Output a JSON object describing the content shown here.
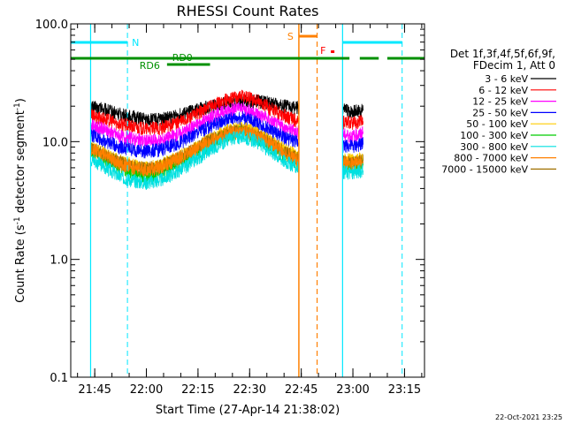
{
  "chart_data": {
    "type": "line",
    "title": "RHESSI Count Rates",
    "xlabel": "Start Time (27-Apr-14 21:38:02)",
    "ylabel_main": "Count Rate (s",
    "ylabel_sup": "-1",
    "ylabel_mid": " detector segment",
    "ylabel_sup2": "-1",
    "ylabel_end": ")",
    "y_scale": "log",
    "ylim": [
      0.1,
      100.0
    ],
    "y_ticks": [
      0.1,
      1.0,
      10.0,
      100.0
    ],
    "y_tick_labels": [
      "0.1",
      "1.0",
      "10.0",
      "100.0"
    ],
    "x_tick_labels": [
      "21:45",
      "22:00",
      "22:15",
      "22:30",
      "22:45",
      "23:00",
      "23:15"
    ],
    "x_tick_minutes": [
      405,
      420,
      435,
      450,
      465,
      480,
      495
    ],
    "xlim_minutes": [
      398.03,
      500.8
    ],
    "timestamp": "22-Oct-2021 23:25",
    "legend_header": [
      "Det 1f,3f,4f,5f,6f,9f,",
      "FDecim 1, Att 0"
    ],
    "data_gaps_minutes": [
      [
        398.03,
        403.8
      ],
      [
        464.3,
        477.0
      ],
      [
        483.5,
        500.8
      ]
    ],
    "series": [
      {
        "name": "3 - 6 keV",
        "color": "#000000",
        "x": [
          404,
          408,
          412,
          416,
          420,
          424,
          428,
          432,
          436,
          440,
          444,
          448,
          452,
          456,
          460,
          464,
          477,
          480,
          483
        ],
        "values": [
          19.8,
          18.8,
          17.2,
          16.2,
          15.4,
          15.6,
          16.3,
          17.6,
          19.1,
          20.3,
          21.6,
          22.4,
          22.1,
          21.3,
          20.1,
          19.2,
          18.6,
          18.0,
          18.6
        ]
      },
      {
        "name": "6 - 12 keV",
        "color": "#ff0000",
        "x": [
          404,
          408,
          412,
          416,
          420,
          424,
          428,
          432,
          436,
          440,
          444,
          448,
          452,
          456,
          460,
          464,
          477,
          480,
          483
        ],
        "values": [
          16.7,
          15.6,
          14.2,
          13.4,
          12.8,
          13.1,
          14.1,
          15.6,
          18.1,
          20.8,
          23.1,
          24.9,
          22.4,
          19.1,
          16.7,
          15.1,
          14.8,
          14.4,
          15.1
        ]
      },
      {
        "name": "12 - 25 keV",
        "color": "#ff00ff",
        "x": [
          404,
          408,
          412,
          416,
          420,
          424,
          428,
          432,
          436,
          440,
          444,
          448,
          452,
          456,
          460,
          464,
          477,
          480,
          483
        ],
        "values": [
          13.7,
          12.6,
          11.2,
          10.6,
          10.1,
          10.3,
          11.1,
          12.6,
          14.6,
          16.9,
          18.6,
          19.3,
          17.6,
          15.1,
          13.1,
          12.1,
          11.6,
          11.2,
          11.9
        ]
      },
      {
        "name": "25 - 50 keV",
        "color": "#0000ff",
        "x": [
          404,
          408,
          412,
          416,
          420,
          424,
          428,
          432,
          436,
          440,
          444,
          448,
          452,
          456,
          460,
          464,
          477,
          480,
          483
        ],
        "values": [
          11.4,
          10.2,
          9.1,
          8.6,
          8.3,
          8.6,
          9.4,
          10.6,
          12.4,
          14.1,
          15.6,
          16.1,
          14.6,
          12.6,
          10.9,
          9.9,
          9.4,
          9.1,
          9.6
        ]
      },
      {
        "name": "50 - 100 keV",
        "color": "#ffcc00",
        "x": [
          404,
          408,
          412,
          416,
          420,
          424,
          428,
          432,
          436,
          440,
          444,
          448,
          452,
          456,
          460,
          464,
          477,
          480,
          483
        ],
        "values": [
          9.1,
          7.9,
          6.9,
          6.3,
          6.0,
          6.3,
          7.1,
          8.1,
          9.6,
          11.1,
          12.6,
          13.1,
          11.9,
          10.1,
          8.6,
          7.6,
          7.2,
          6.9,
          7.3
        ]
      },
      {
        "name": "100 - 300 keV",
        "color": "#00cc00",
        "x": [
          404,
          408,
          412,
          416,
          420,
          424,
          428,
          432,
          436,
          440,
          444,
          448,
          452,
          456,
          460,
          464,
          477,
          480,
          483
        ],
        "values": [
          8.1,
          7.1,
          6.0,
          5.4,
          5.1,
          5.4,
          6.2,
          7.2,
          8.6,
          10.1,
          11.6,
          12.1,
          10.9,
          9.1,
          7.6,
          6.7,
          6.3,
          6.0,
          6.4
        ]
      },
      {
        "name": "300 - 800 keV",
        "color": "#00e0e0",
        "x": [
          404,
          408,
          412,
          416,
          420,
          424,
          428,
          432,
          436,
          440,
          444,
          448,
          452,
          456,
          460,
          464,
          477,
          480,
          483
        ],
        "values": [
          7.1,
          6.1,
          5.1,
          4.7,
          4.5,
          4.7,
          5.4,
          6.3,
          7.6,
          9.1,
          10.6,
          11.1,
          10.1,
          8.4,
          6.9,
          6.0,
          5.6,
          5.4,
          5.8
        ]
      },
      {
        "name": "800 - 7000 keV",
        "color": "#ff8000",
        "x": [
          404,
          408,
          412,
          416,
          420,
          424,
          428,
          432,
          436,
          440,
          444,
          448,
          452,
          456,
          460,
          464,
          477,
          480,
          483
        ],
        "values": [
          8.6,
          7.6,
          6.6,
          6.1,
          5.8,
          6.1,
          6.9,
          7.9,
          9.3,
          10.6,
          11.9,
          12.4,
          11.4,
          9.6,
          8.1,
          7.1,
          6.7,
          6.4,
          6.8
        ]
      },
      {
        "name": "7000 - 15000 keV",
        "color": "#a07000",
        "x": [
          404,
          408,
          412,
          416,
          420,
          424,
          428,
          432,
          436,
          440,
          444,
          448,
          452,
          456,
          460,
          464,
          477,
          480,
          483
        ],
        "values": [
          8.9,
          7.8,
          6.8,
          6.2,
          5.9,
          6.2,
          7.0,
          8.0,
          9.4,
          10.8,
          12.1,
          12.6,
          11.6,
          9.8,
          8.3,
          7.3,
          6.9,
          6.6,
          7.0
        ]
      }
    ],
    "annotations": [
      {
        "label": "N",
        "color": "#00e8ff"
      },
      {
        "label": "RD0",
        "color": "#009000"
      },
      {
        "label": "RD6",
        "color": "#009000"
      },
      {
        "label": "S",
        "color": "#ff8000"
      },
      {
        "label": "F",
        "color": "#ff0000"
      }
    ]
  }
}
